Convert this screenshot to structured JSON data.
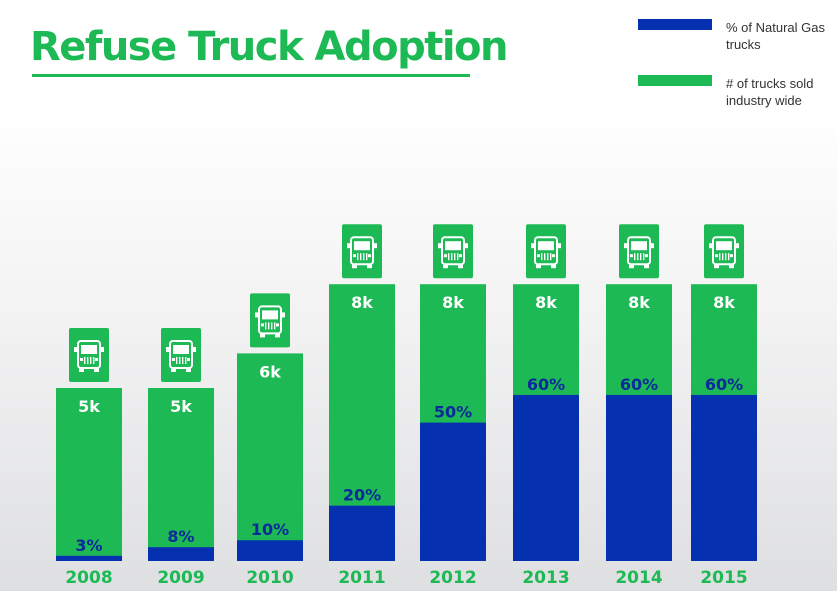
{
  "title": "Refuse Truck Adoption",
  "legend": {
    "natural_gas": "% of Natural Gas trucks",
    "trucks_sold": "# of trucks sold industry wide"
  },
  "colors": {
    "green": "#1db954",
    "blue": "#0530b0",
    "label_white": "#ffffff",
    "label_blue": "#0a2a9c"
  },
  "icons": {
    "truck": "garbage-truck-icon"
  },
  "chart_data": {
    "type": "bar",
    "title": "Refuse Truck Adoption",
    "categories": [
      "2008",
      "2009",
      "2010",
      "2011",
      "2012",
      "2013",
      "2014",
      "2015"
    ],
    "series": [
      {
        "name": "# of trucks sold industry wide",
        "values": [
          5,
          5,
          6,
          8,
          8,
          8,
          8,
          8
        ],
        "labels": [
          "5k",
          "5k",
          "6k",
          "8k",
          "8k",
          "8k",
          "8k",
          "8k"
        ]
      },
      {
        "name": "% of Natural Gas trucks",
        "values": [
          3,
          8,
          10,
          20,
          50,
          60,
          60,
          60
        ],
        "labels": [
          "3%",
          "8%",
          "10%",
          "20%",
          "50%",
          "60%",
          "60%",
          "60%"
        ]
      }
    ],
    "grid": false,
    "legend_position": "top-right"
  }
}
